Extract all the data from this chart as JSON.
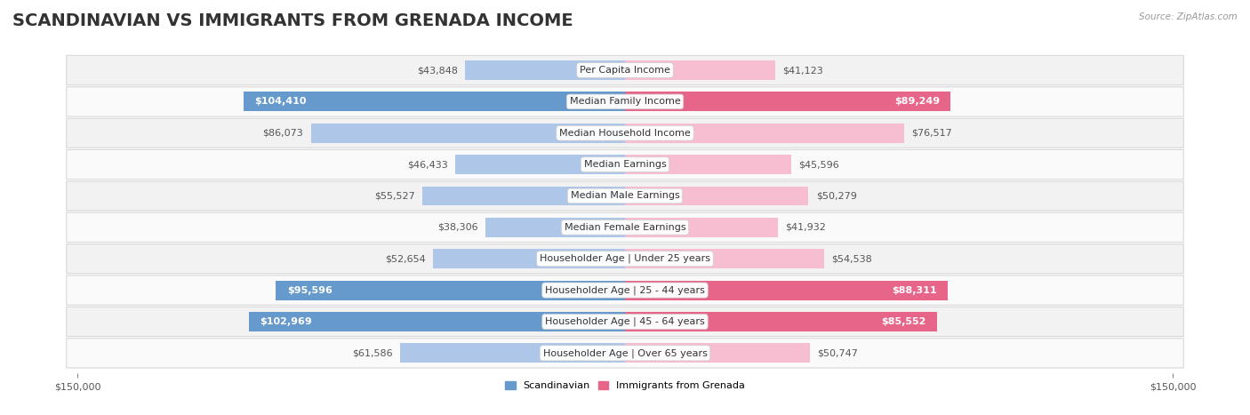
{
  "title": "SCANDINAVIAN VS IMMIGRANTS FROM GRENADA INCOME",
  "source": "Source: ZipAtlas.com",
  "categories": [
    "Per Capita Income",
    "Median Family Income",
    "Median Household Income",
    "Median Earnings",
    "Median Male Earnings",
    "Median Female Earnings",
    "Householder Age | Under 25 years",
    "Householder Age | 25 - 44 years",
    "Householder Age | 45 - 64 years",
    "Householder Age | Over 65 years"
  ],
  "scandinavian": [
    43848,
    104410,
    86073,
    46433,
    55527,
    38306,
    52654,
    95596,
    102969,
    61586
  ],
  "grenada": [
    41123,
    89249,
    76517,
    45596,
    50279,
    41932,
    54538,
    88311,
    85552,
    50747
  ],
  "scand_color_normal": "#aec6e8",
  "scand_color_highlight": "#6699cc",
  "grenada_color_normal": "#f7bdd0",
  "grenada_color_highlight": "#e8658a",
  "max_val": 150000,
  "bar_height": 0.62,
  "title_fontsize": 14,
  "label_fontsize": 8,
  "tick_fontsize": 8,
  "inside_label_threshold": 90000,
  "grenada_inside_threshold": 85000
}
